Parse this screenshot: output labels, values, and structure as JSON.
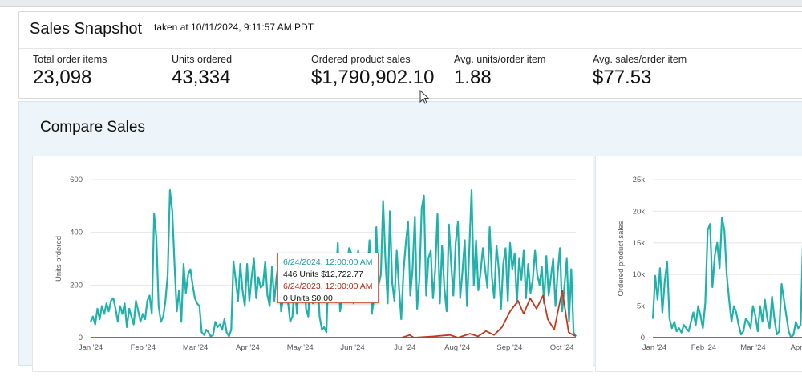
{
  "snapshot": {
    "title": "Sales Snapshot",
    "taken": "taken at 10/11/2024, 9:11:57 AM PDT",
    "metrics": [
      {
        "label": "Total order items",
        "value": "23,098"
      },
      {
        "label": "Units ordered",
        "value": "43,334"
      },
      {
        "label": "Ordered product sales",
        "value": "$1,790,902.10"
      },
      {
        "label": "Avg. units/order item",
        "value": "1.88"
      },
      {
        "label": "Avg. sales/order item",
        "value": "$77.53"
      }
    ]
  },
  "compare": {
    "title": "Compare Sales"
  },
  "tooltip": {
    "line1": "6/24/2024, 12:00:00 AM",
    "line2": "446 Units $12,722.77",
    "line3": "6/24/2023, 12:00:00 AM",
    "line4": "0 Units $0.00"
  },
  "colors": {
    "current": "#20b2aa",
    "previous": "#c0391f",
    "grid": "#e6e6e6"
  },
  "chart_data": [
    {
      "type": "line",
      "ylabel": "Units ordered",
      "ylim": [
        0,
        600
      ],
      "yticks": [
        "0",
        "200",
        "400",
        "600"
      ],
      "xticks": [
        "Jan '24",
        "Feb '24",
        "Mar '24",
        "Apr '24",
        "May '24",
        "Jun '24",
        "Jul '24",
        "Aug '24",
        "Sep '24",
        "Oct '24"
      ],
      "grid": true,
      "series": [
        {
          "values": [
            60,
            80,
            50,
            110,
            70,
            120,
            90,
            130,
            100,
            140,
            150,
            110,
            60,
            120,
            90,
            130,
            40,
            110,
            80,
            50,
            140,
            100,
            60,
            90,
            70,
            140,
            160,
            90,
            470,
            380,
            120,
            60,
            80,
            140,
            240,
            560,
            480,
            280,
            100,
            180,
            60,
            280,
            170,
            240,
            260,
            200,
            150,
            130,
            120,
            20,
            10,
            30,
            20,
            5,
            10,
            60,
            40,
            50,
            30,
            70,
            20,
            5,
            30,
            290,
            220,
            140,
            280,
            180,
            120,
            280,
            140,
            230,
            300,
            150,
            230,
            190,
            200,
            290,
            160,
            120,
            270,
            140,
            230,
            290,
            100,
            160,
            300,
            140,
            60,
            80,
            210,
            90,
            240,
            200,
            280,
            110,
            80,
            270,
            130,
            150,
            240,
            80,
            30,
            40,
            20,
            280,
            200,
            310,
            180,
            360,
            100,
            150,
            260,
            280,
            340,
            320,
            130,
            270,
            330,
            200,
            180,
            310,
            230,
            370,
            90,
            150,
            420,
            200,
            240,
            520,
            300,
            130,
            480,
            210,
            140,
            330,
            190,
            70,
            250,
            360,
            440,
            160,
            260,
            460,
            110,
            220,
            490,
            540,
            160,
            300,
            330,
            150,
            260,
            470,
            130,
            350,
            190,
            100,
            430,
            280,
            160,
            360,
            440,
            150,
            250,
            370,
            120,
            330,
            560,
            200,
            370,
            180,
            250,
            340,
            260,
            190,
            420,
            230,
            150,
            350,
            260,
            110,
            280,
            340,
            140,
            360,
            260,
            320,
            130,
            300,
            220,
            330,
            150,
            280,
            170,
            220,
            330,
            240,
            200,
            270,
            130,
            310,
            160,
            230,
            300,
            120,
            250,
            340,
            100,
            200,
            300,
            60,
            260,
            20,
            5
          ]
        },
        {
          "values": [
            0,
            0,
            0,
            0,
            0,
            0,
            0,
            0,
            0,
            0,
            0,
            0,
            0,
            0,
            0,
            0,
            0,
            0,
            0,
            0,
            0,
            0,
            0,
            0,
            0,
            0,
            0,
            0,
            0,
            0,
            0,
            0,
            0,
            0,
            0,
            0,
            0,
            0,
            0,
            0,
            0,
            0,
            0,
            0,
            0,
            0,
            0,
            0,
            0,
            0,
            0,
            0,
            0,
            0,
            0,
            0,
            0,
            0,
            0,
            0,
            0,
            0,
            0,
            0,
            0,
            0,
            0,
            0,
            0,
            0,
            0,
            0,
            0,
            0,
            0,
            0,
            0,
            0,
            0,
            0,
            0,
            0,
            0,
            0,
            0,
            0,
            0,
            0,
            0,
            0,
            0,
            0,
            0,
            0,
            0,
            0,
            0,
            0,
            0,
            0,
            0,
            0,
            0,
            0,
            0,
            0,
            0,
            0,
            0,
            0,
            0,
            0,
            0,
            0,
            0,
            0,
            0,
            0,
            0,
            0,
            0,
            0,
            0,
            0,
            0,
            0,
            0,
            0,
            0,
            0,
            0,
            0,
            0,
            0,
            0,
            0,
            0,
            0,
            0,
            0,
            0,
            0,
            0,
            0,
            0,
            0,
            0,
            0,
            0,
            0,
            0,
            0,
            0,
            0,
            0,
            0,
            0,
            0,
            0,
            0,
            0,
            0,
            0,
            0,
            0,
            0,
            0,
            0,
            0,
            0,
            0,
            0,
            0,
            0,
            0,
            0,
            0,
            0,
            0,
            0,
            0,
            0,
            0,
            0,
            0,
            0,
            0,
            0,
            0,
            0,
            0,
            0,
            0,
            0,
            0,
            0,
            0,
            0,
            0,
            0,
            0,
            0,
            0,
            0,
            0,
            0,
            0,
            0,
            0,
            0,
            0,
            0,
            0,
            0,
            0,
            0,
            0,
            0,
            0,
            0,
            0
          ]
        }
      ]
    },
    {
      "type": "line",
      "ylabel": "Ordered product sales",
      "ylim": [
        0,
        25000
      ],
      "yticks": [
        "0",
        "5k",
        "10k",
        "15k",
        "20k",
        "25k"
      ],
      "xticks": [
        "Jan '24",
        "Feb '24",
        "Mar '24",
        "Apr '24"
      ],
      "grid": true,
      "series": [
        {
          "values": [
            3000,
            9800,
            6000,
            11000,
            4000,
            9000,
            12000,
            3000,
            1500,
            2500,
            1000,
            1500,
            800,
            2000,
            1500,
            1000,
            2500,
            4000,
            2000,
            5000,
            3500,
            1500,
            5500,
            17000,
            18000,
            8000,
            13000,
            15000,
            11000,
            19000,
            17000,
            10000,
            6000,
            2500,
            5000,
            4000,
            2000,
            500,
            1000,
            3000,
            2500,
            1500,
            5000,
            3500,
            1000,
            5000,
            2500,
            6000,
            3000,
            1500,
            6500,
            3000,
            500,
            1000,
            8500,
            6000,
            3500,
            1000,
            0,
            500,
            2500,
            1500,
            2000,
            16000,
            19000,
            13000,
            9000,
            17000,
            12000,
            3000,
            19500,
            12000,
            16000
          ]
        },
        {
          "values": [
            0,
            0,
            0,
            0,
            0,
            0,
            0,
            0,
            0,
            0,
            0,
            0,
            0,
            0,
            0,
            0,
            0,
            0,
            0,
            0,
            0,
            0,
            0,
            0,
            0,
            0,
            0,
            0,
            0,
            0,
            0,
            0,
            0,
            0,
            0,
            0,
            0,
            0,
            0,
            0,
            0,
            0,
            0,
            0,
            0,
            0,
            0,
            0,
            0,
            0,
            0,
            0,
            0,
            0,
            0,
            0,
            0,
            0,
            0,
            0,
            0,
            0,
            0,
            0,
            0,
            0,
            0,
            0,
            0,
            0,
            0,
            0,
            0
          ]
        }
      ]
    }
  ]
}
